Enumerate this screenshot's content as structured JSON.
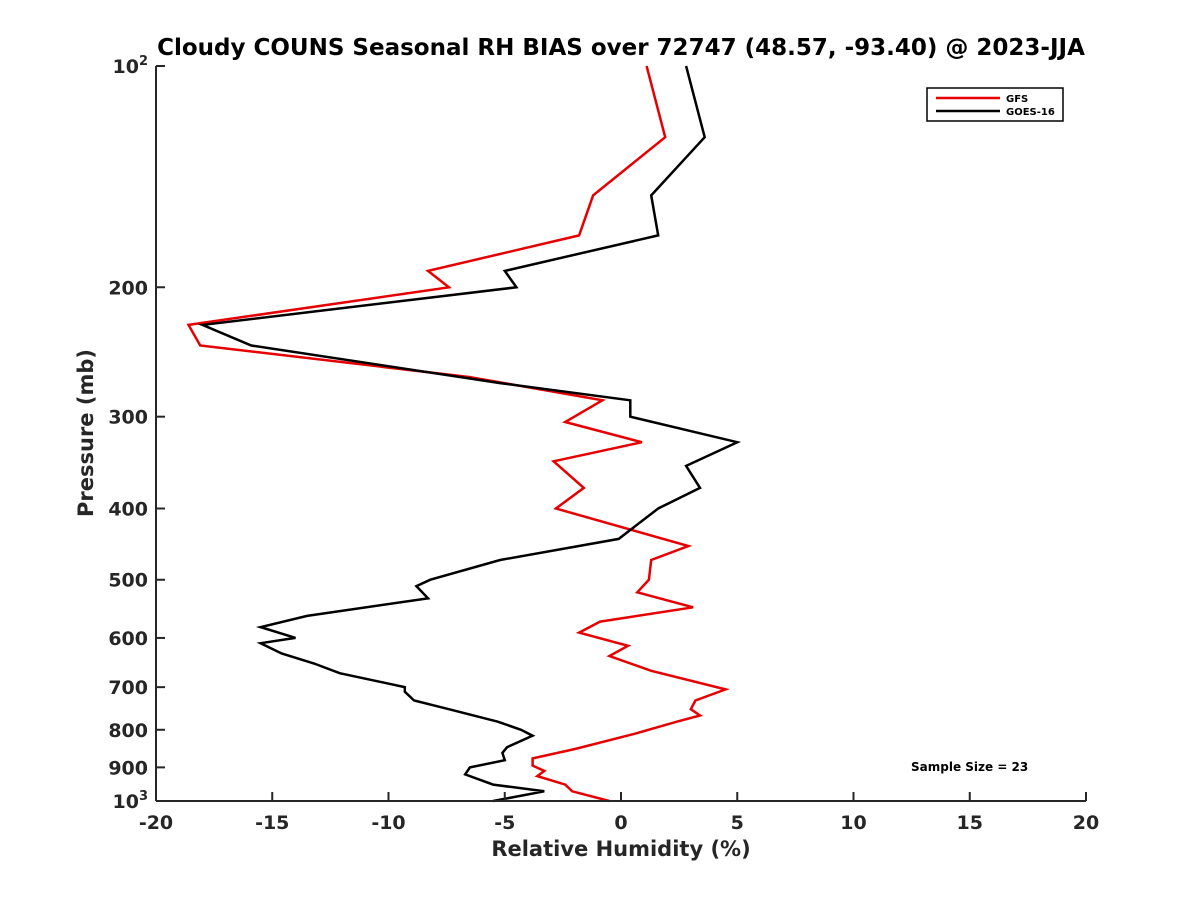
{
  "chart_data": {
    "type": "line",
    "title": "Cloudy COUNS Seasonal RH BIAS over 72747 (48.57, -93.40) @ 2023-JJA",
    "xlabel": "Relative Humidity (%)",
    "ylabel": "Pressure (mb)",
    "xlim": [
      -20,
      20
    ],
    "ylim": [
      100,
      1000
    ],
    "y_scale": "log",
    "y_reversed": true,
    "x_ticks": [
      {
        "value": -20,
        "label": "-20"
      },
      {
        "value": -15,
        "label": "-15"
      },
      {
        "value": -10,
        "label": "-10"
      },
      {
        "value": -5,
        "label": "-5"
      },
      {
        "value": 0,
        "label": "0"
      },
      {
        "value": 5,
        "label": "5"
      },
      {
        "value": 10,
        "label": "10"
      },
      {
        "value": 15,
        "label": "15"
      },
      {
        "value": 20,
        "label": "20"
      }
    ],
    "y_ticks": [
      {
        "value": 100,
        "base": "10",
        "exp": "2"
      },
      {
        "value": 200,
        "label": "200"
      },
      {
        "value": 300,
        "label": "300"
      },
      {
        "value": 400,
        "label": "400"
      },
      {
        "value": 500,
        "label": "500"
      },
      {
        "value": 600,
        "label": "600"
      },
      {
        "value": 700,
        "label": "700"
      },
      {
        "value": 800,
        "label": "800"
      },
      {
        "value": 900,
        "label": "900"
      },
      {
        "value": 1000,
        "base": "10",
        "exp": "3"
      }
    ],
    "grid": false,
    "legend_position": "top-right",
    "annotation": "Sample Size = 23",
    "series": [
      {
        "name": "GFS",
        "color": "#e60000",
        "points": [
          [
            1.1,
            100
          ],
          [
            1.9,
            125
          ],
          [
            -1.2,
            150
          ],
          [
            -1.8,
            170
          ],
          [
            -8.3,
            190
          ],
          [
            -7.4,
            200
          ],
          [
            -18.6,
            225
          ],
          [
            -18.1,
            240
          ],
          [
            -6.5,
            265
          ],
          [
            -0.8,
            285
          ],
          [
            -2.4,
            305
          ],
          [
            0.9,
            325
          ],
          [
            -2.9,
            345
          ],
          [
            -1.6,
            375
          ],
          [
            -2.8,
            400
          ],
          [
            2.9,
            450
          ],
          [
            1.3,
            470
          ],
          [
            1.2,
            500
          ],
          [
            0.7,
            520
          ],
          [
            3.1,
            545
          ],
          [
            -0.9,
            570
          ],
          [
            -1.8,
            590
          ],
          [
            0.3,
            615
          ],
          [
            -0.5,
            635
          ],
          [
            1.3,
            665
          ],
          [
            4.5,
            705
          ],
          [
            3.2,
            730
          ],
          [
            3.0,
            750
          ],
          [
            3.4,
            765
          ],
          [
            2.4,
            780
          ],
          [
            0.6,
            810
          ],
          [
            -2.0,
            850
          ],
          [
            -3.8,
            875
          ],
          [
            -3.8,
            895
          ],
          [
            -3.3,
            910
          ],
          [
            -3.6,
            925
          ],
          [
            -2.4,
            950
          ],
          [
            -2.1,
            970
          ],
          [
            -0.5,
            1000
          ]
        ]
      },
      {
        "name": "GOES-16",
        "color": "#000000",
        "points": [
          [
            2.8,
            100
          ],
          [
            3.6,
            125
          ],
          [
            1.3,
            150
          ],
          [
            1.6,
            170
          ],
          [
            -5.0,
            190
          ],
          [
            -4.5,
            200
          ],
          [
            -18.0,
            225
          ],
          [
            -15.9,
            240
          ],
          [
            -5.2,
            270
          ],
          [
            0.4,
            285
          ],
          [
            0.4,
            300
          ],
          [
            5.0,
            325
          ],
          [
            2.8,
            350
          ],
          [
            3.4,
            375
          ],
          [
            1.6,
            400
          ],
          [
            -0.1,
            440
          ],
          [
            -5.2,
            470
          ],
          [
            -8.2,
            500
          ],
          [
            -8.8,
            510
          ],
          [
            -8.3,
            530
          ],
          [
            -13.5,
            560
          ],
          [
            -15.5,
            580
          ],
          [
            -14.0,
            600
          ],
          [
            -15.5,
            610
          ],
          [
            -14.6,
            630
          ],
          [
            -13.2,
            650
          ],
          [
            -12.1,
            670
          ],
          [
            -9.3,
            700
          ],
          [
            -9.3,
            710
          ],
          [
            -8.9,
            730
          ],
          [
            -7.4,
            750
          ],
          [
            -5.3,
            780
          ],
          [
            -4.3,
            800
          ],
          [
            -3.8,
            815
          ],
          [
            -4.9,
            845
          ],
          [
            -5.1,
            860
          ],
          [
            -5.0,
            880
          ],
          [
            -6.5,
            900
          ],
          [
            -6.7,
            920
          ],
          [
            -5.5,
            950
          ],
          [
            -3.3,
            970
          ],
          [
            -5.5,
            1000
          ]
        ]
      }
    ]
  }
}
